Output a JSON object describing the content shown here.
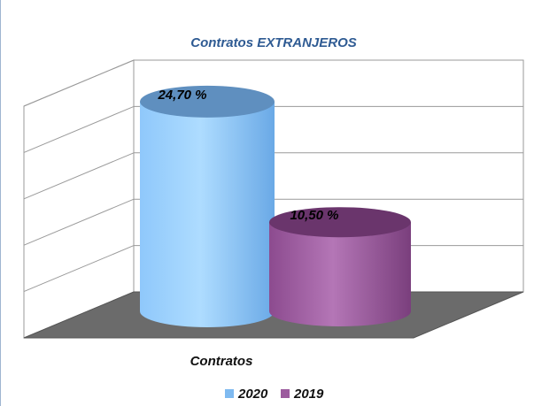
{
  "chart_data": {
    "type": "bar",
    "style": "3d-cylinder",
    "title": "Contratos EXTRANJEROS",
    "categories": [
      "Contratos"
    ],
    "series": [
      {
        "name": "2020",
        "values": [
          24.7
        ],
        "label": "24,70 %",
        "color": "#7fbaf0"
      },
      {
        "name": "2019",
        "values": [
          10.5
        ],
        "label": "10,50 %",
        "color": "#9c5b9e"
      }
    ],
    "xlabel": "",
    "ylabel": "",
    "ylim": [
      0,
      30
    ],
    "grid": true,
    "legend_position": "bottom",
    "floor_color": "#6b6b6b"
  }
}
